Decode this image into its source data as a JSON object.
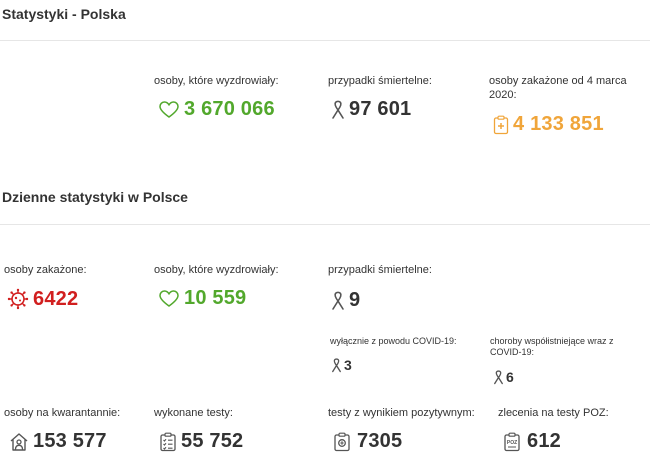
{
  "colors": {
    "green": "#52a82c",
    "dark": "#333333",
    "orange": "#f0a53a",
    "red": "#d11f1f"
  },
  "poland": {
    "title": "Statystyki - Polska",
    "recovered": {
      "label": "osoby, które wyzdrowiały:",
      "value": "3 670 066",
      "icon": "heart-icon"
    },
    "deaths": {
      "label": "przypadki śmiertelne:",
      "value": "97 601",
      "icon": "ribbon-icon"
    },
    "infected": {
      "label": "osoby zakażone od 4 marca 2020:",
      "value": "4 133 851",
      "icon": "clipboard-cross-icon"
    }
  },
  "daily": {
    "title": "Dzienne statystyki w Polsce",
    "infected": {
      "label": "osoby zakażone:",
      "value": "6422",
      "icon": "virus-icon"
    },
    "recovered": {
      "label": "osoby, które wyzdrowiały:",
      "value": "10 559",
      "icon": "heart-icon"
    },
    "deaths": {
      "label": "przypadki śmiertelne:",
      "value": "9",
      "icon": "ribbon-icon"
    },
    "covid_only": {
      "label": "wyłącznie z powodu COVID-19:",
      "value": "3",
      "icon": "ribbon-icon"
    },
    "comorbid": {
      "label": "choroby współistniejące wraz z COVID-19:",
      "value": "6",
      "icon": "ribbon-icon"
    },
    "quarantine": {
      "label": "osoby na kwarantannie:",
      "value": "153 577",
      "icon": "house-person-icon"
    },
    "tests": {
      "label": "wykonane testy:",
      "value": "55 752",
      "icon": "clipboard-check-icon"
    },
    "positive_tests": {
      "label": "testy z wynikiem pozytywnym:",
      "value": "7305",
      "icon": "test-positive-icon"
    },
    "poz_orders": {
      "label": "zlecenia na testy POZ:",
      "value": "612",
      "icon": "poz-clipboard-icon"
    }
  }
}
